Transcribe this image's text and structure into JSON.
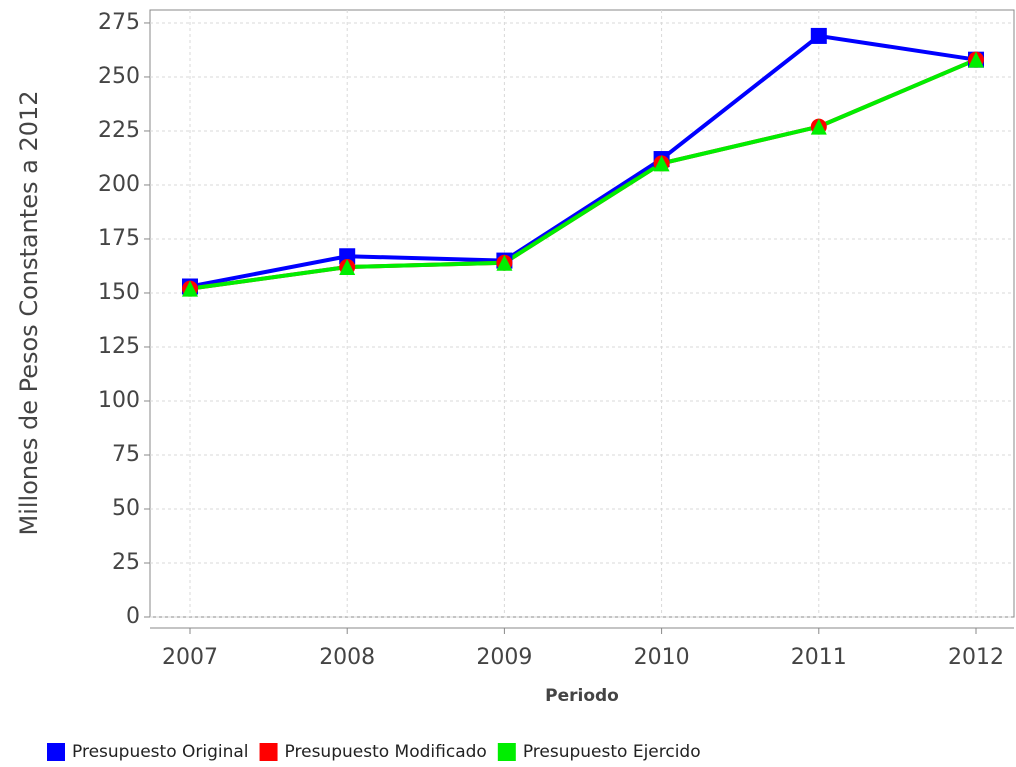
{
  "chart_data": {
    "type": "line",
    "ylabel": "Millones de Pesos Constantes a 2012",
    "xlabel": "Periodo",
    "categories": [
      "2007",
      "2008",
      "2009",
      "2010",
      "2011",
      "2012"
    ],
    "series": [
      {
        "name": "Presupuesto Original",
        "color": "#0000ff",
        "marker": "square",
        "values": [
          153,
          167,
          165,
          212,
          269,
          258
        ]
      },
      {
        "name": "Presupuesto Modificado",
        "color": "#ff0000",
        "marker": "circle",
        "values": [
          152,
          162,
          164,
          210,
          227,
          258
        ]
      },
      {
        "name": "Presupuesto Ejercido",
        "color": "#00ee00",
        "marker": "triangle",
        "values": [
          152,
          162,
          164,
          210,
          227,
          258
        ]
      }
    ],
    "ylim": [
      0,
      281
    ],
    "yticks": [
      0,
      25,
      50,
      75,
      100,
      125,
      150,
      175,
      200,
      225,
      250,
      275
    ],
    "grid": true
  }
}
